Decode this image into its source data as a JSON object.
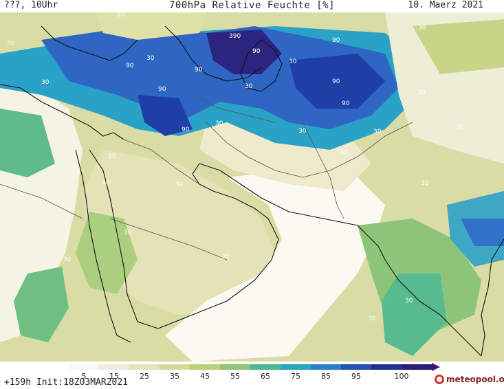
{
  "header": {
    "left_text": "???, 10Uhr",
    "center_title": "700hPa Relative Feuchte [%]",
    "right_date": "10. Maerz 2021"
  },
  "map": {
    "variable": "700hPa relative humidity",
    "contour_labels": [
      "90",
      "90",
      "90",
      "90",
      "90",
      "90",
      "90",
      "90",
      "90",
      "390",
      "30",
      "30",
      "30",
      "30",
      "30",
      "30",
      "30",
      "30",
      "30",
      "30",
      "30",
      "30",
      "30",
      "30",
      "30",
      "30",
      "30",
      "30",
      "30",
      "30",
      "30",
      "30"
    ],
    "colors": {
      "ocean_low": "#ffffff",
      "dry_tan": "#f1ecd6",
      "olive_light": "#dfe2a8",
      "olive": "#c2cd7a",
      "green": "#86c07a",
      "teal": "#3fb3a0",
      "cyan": "#2aa2c8",
      "blue": "#2f72c9",
      "deep_blue": "#1d3fa8",
      "navy": "#27227a",
      "coast_line": "#111111",
      "border_line": "#555555"
    }
  },
  "legend": {
    "ticks": [
      "5",
      "15",
      "25",
      "35",
      "45",
      "55",
      "65",
      "75",
      "85",
      "95",
      "100"
    ],
    "colors": [
      "#f7f7f7",
      "#eeeede",
      "#e7e3bf",
      "#d6d99a",
      "#bcd07a",
      "#8ec477",
      "#4fb98f",
      "#27a7b9",
      "#2a7fcc",
      "#2352b5",
      "#23308f",
      "#2b1e78"
    ]
  },
  "footer": {
    "run_info": "+159h Init:18Z03MAR2021",
    "logo_text": "meteopool.org"
  }
}
